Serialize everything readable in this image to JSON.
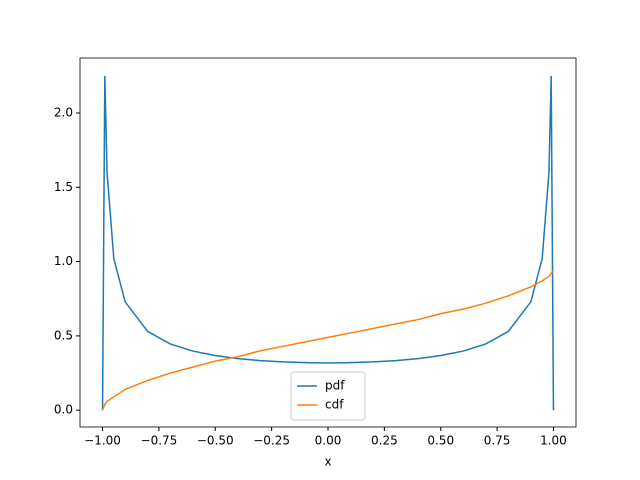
{
  "chart_data": {
    "type": "line",
    "xlabel": "x",
    "x": [
      -1,
      -0.99,
      -0.98,
      -0.95,
      -0.9,
      -0.8,
      -0.7,
      -0.6,
      -0.5,
      -0.4,
      -0.3,
      -0.2,
      -0.1,
      0,
      0.1,
      0.2,
      0.3,
      0.4,
      0.5,
      0.6,
      0.7,
      0.8,
      0.9,
      0.95,
      0.98,
      0.99,
      1
    ],
    "series": [
      {
        "name": "pdf",
        "color": "#1f77b4",
        "values": [
          0,
          2.25,
          1.6,
          1.02,
          0.73,
          0.53,
          0.446,
          0.398,
          0.368,
          0.347,
          0.334,
          0.325,
          0.32,
          0.318,
          0.32,
          0.325,
          0.334,
          0.347,
          0.368,
          0.398,
          0.446,
          0.53,
          0.73,
          1.02,
          1.6,
          2.25,
          0
        ]
      },
      {
        "name": "cdf",
        "color": "#ff7f0e",
        "values": [
          0,
          0.04,
          0.06,
          0.09,
          0.14,
          0.2,
          0.25,
          0.29,
          0.33,
          0.36,
          0.4,
          0.43,
          0.46,
          0.49,
          0.52,
          0.55,
          0.58,
          0.61,
          0.65,
          0.68,
          0.72,
          0.77,
          0.83,
          0.87,
          0.9,
          0.92,
          0.94
        ]
      }
    ],
    "xlim": [
      -1.1,
      1.1
    ],
    "xticks": [
      {
        "value": -1,
        "label": "−1.00"
      },
      {
        "value": -0.75,
        "label": "−0.75"
      },
      {
        "value": -0.5,
        "label": "−0.50"
      },
      {
        "value": -0.25,
        "label": "−0.25"
      },
      {
        "value": 0,
        "label": "0.00"
      },
      {
        "value": 0.25,
        "label": "0.25"
      },
      {
        "value": 0.5,
        "label": "0.50"
      },
      {
        "value": 0.75,
        "label": "0.75"
      },
      {
        "value": 1,
        "label": "1.00"
      }
    ],
    "ylim": [
      -0.113,
      2.37
    ],
    "yticks": [
      {
        "value": 0,
        "label": "0.0"
      },
      {
        "value": 0.5,
        "label": "0.5"
      },
      {
        "value": 1,
        "label": "1.0"
      },
      {
        "value": 1.5,
        "label": "1.5"
      },
      {
        "value": 2,
        "label": "2.0"
      }
    ],
    "legend": "lower center"
  }
}
